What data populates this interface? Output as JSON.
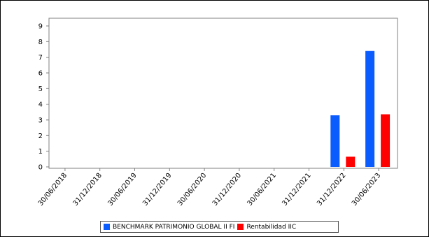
{
  "chart_data": {
    "type": "bar",
    "title": "",
    "xlabel": "",
    "ylabel": "",
    "ylim": [
      0,
      9
    ],
    "yticks": [
      0,
      1,
      2,
      3,
      4,
      5,
      6,
      7,
      8,
      9
    ],
    "categories": [
      "30/06/2018",
      "31/12/2018",
      "30/06/2019",
      "31/12/2019",
      "30/06/2020",
      "31/12/2020",
      "30/06/2021",
      "31/12/2021",
      "31/12/2022",
      "30/06/2023"
    ],
    "series": [
      {
        "name": "BENCHMARK PATRIMONIO GLOBAL II FI",
        "color": "#0a5cff",
        "values": [
          null,
          null,
          null,
          null,
          null,
          null,
          null,
          null,
          3.3,
          7.4
        ]
      },
      {
        "name": "Rentabilidad IIC",
        "color": "#ff0000",
        "values": [
          null,
          null,
          null,
          null,
          null,
          null,
          null,
          null,
          0.65,
          3.35
        ]
      }
    ],
    "grid": false,
    "legend_position": "bottom"
  }
}
